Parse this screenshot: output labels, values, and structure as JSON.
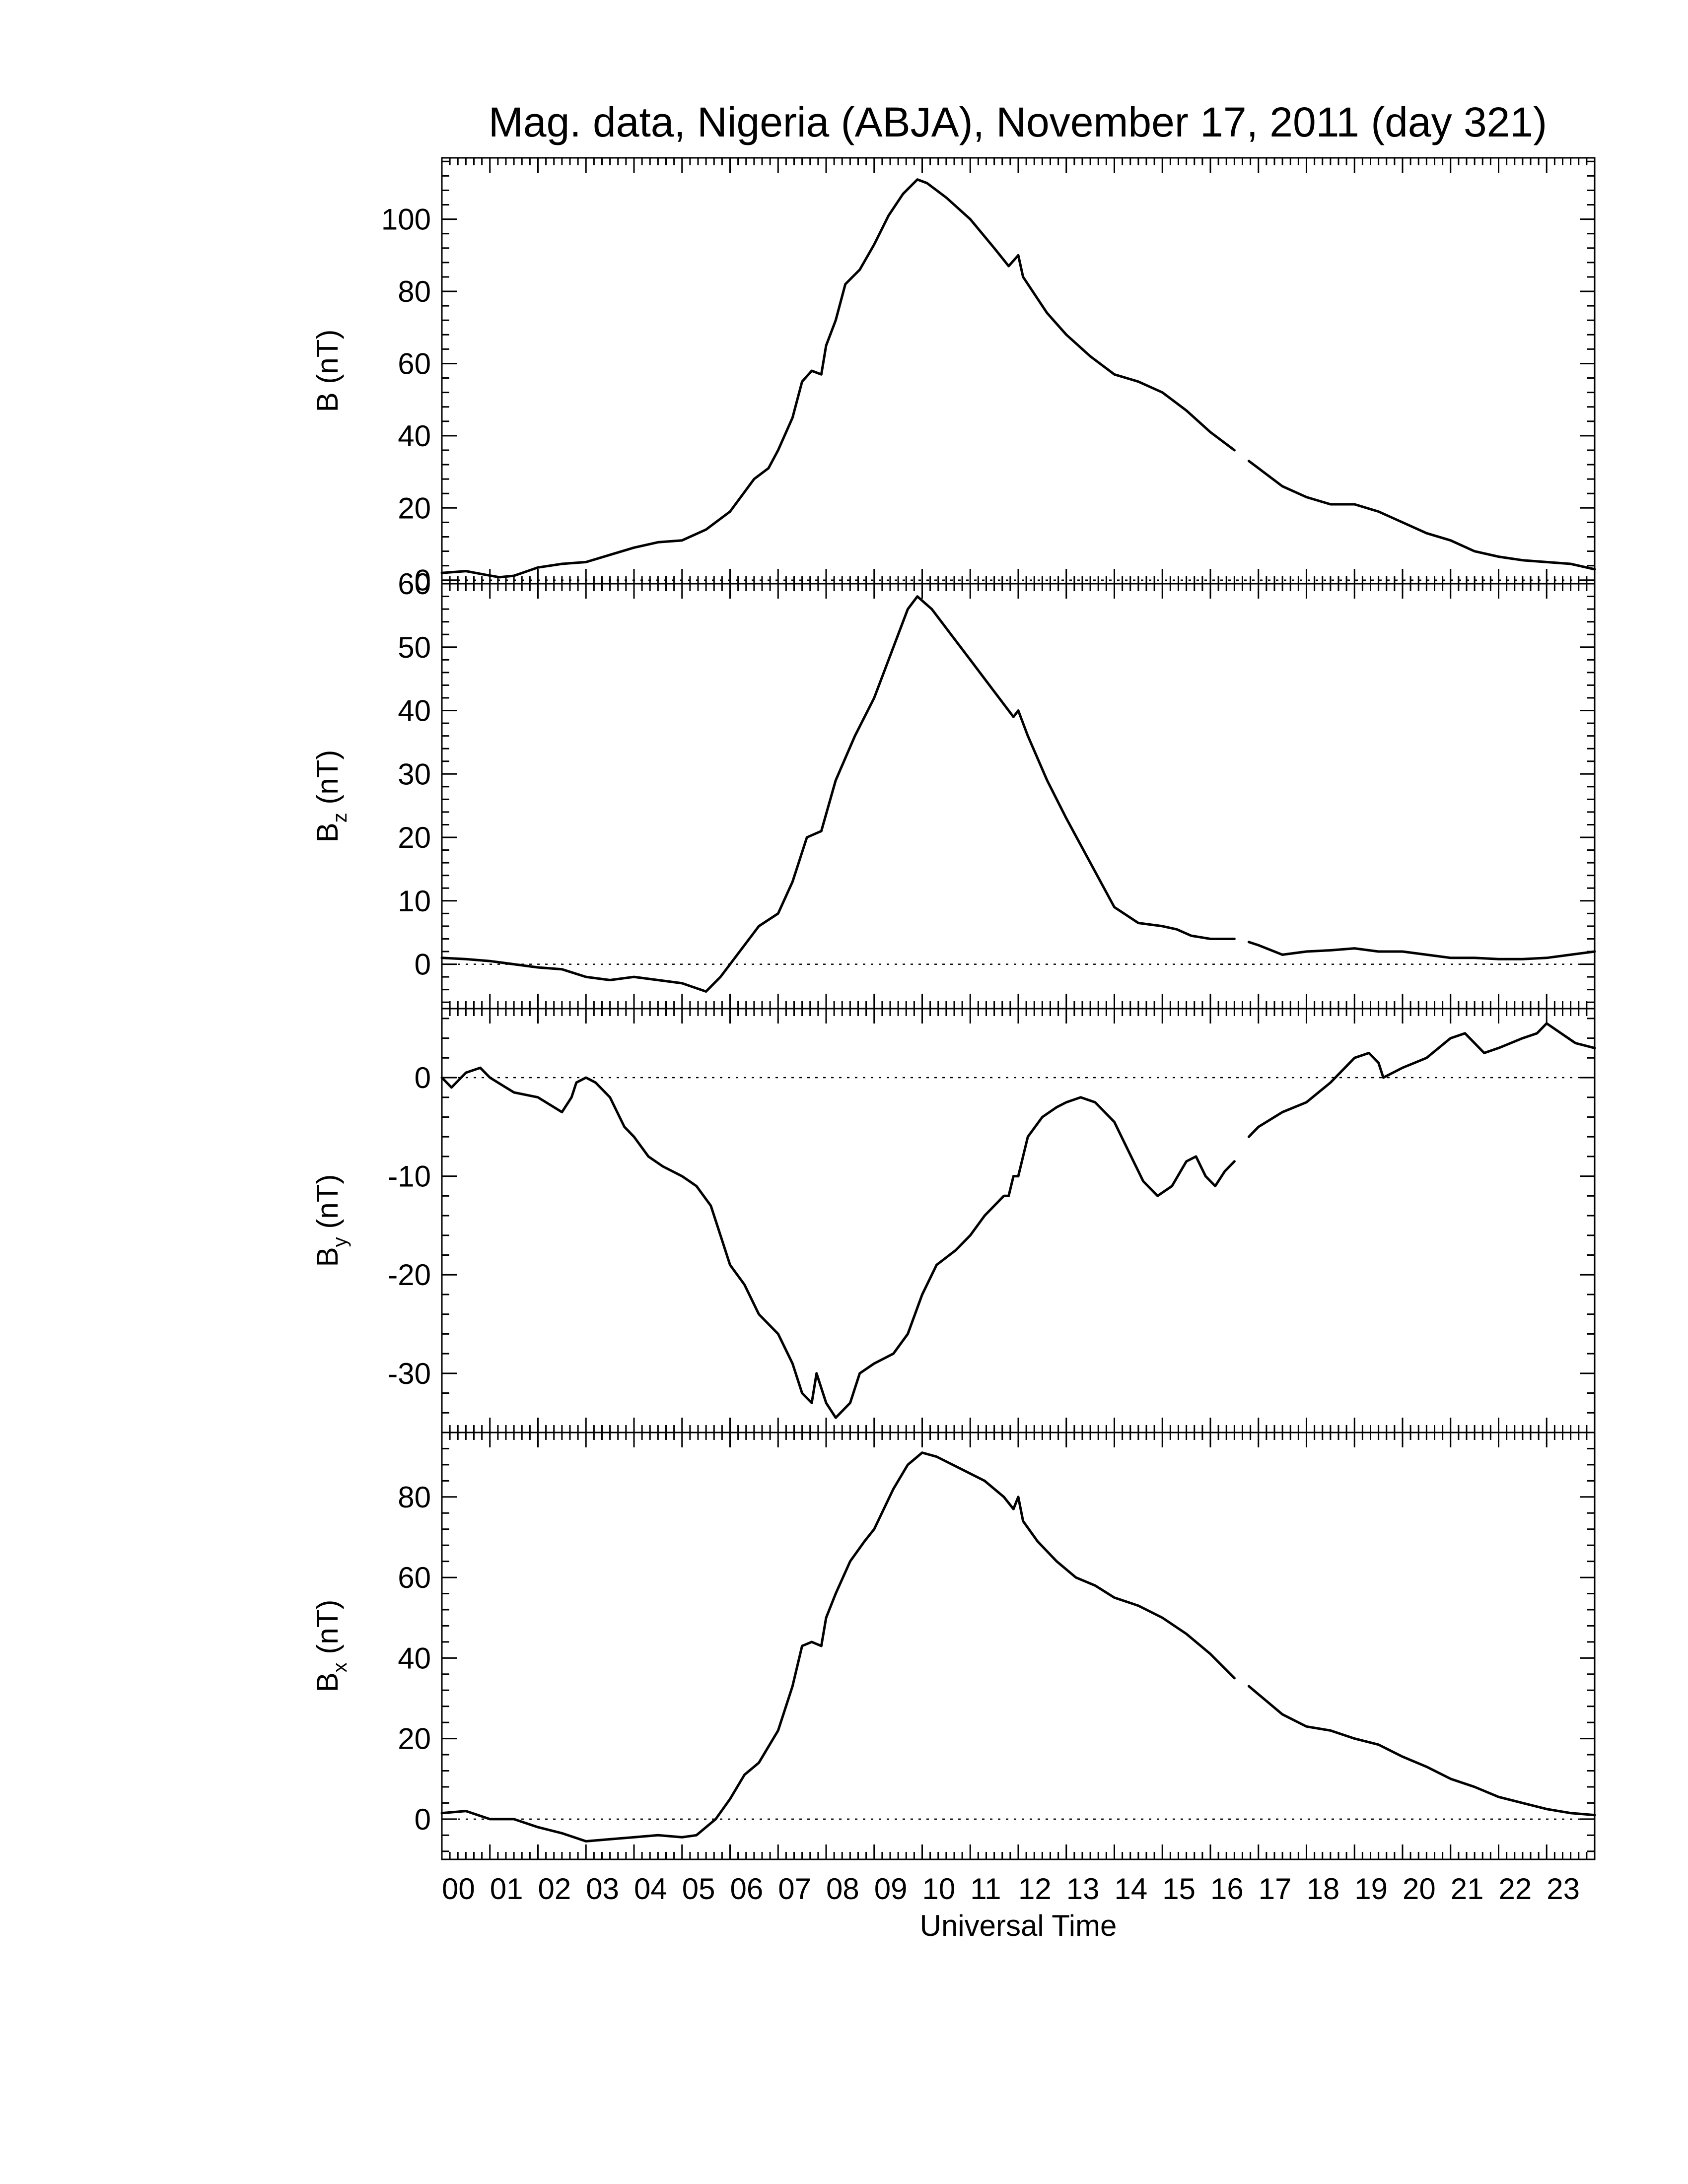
{
  "chart_data": {
    "type": "line",
    "title": "Mag. data, Nigeria (ABJA), November 17, 2011 (day 321)",
    "xlabel": "Universal Time",
    "x_unit": "hour (UT)",
    "xlim": [
      0,
      24
    ],
    "x_tick_labels": [
      "00",
      "01",
      "02",
      "03",
      "04",
      "05",
      "06",
      "07",
      "08",
      "09",
      "10",
      "11",
      "12",
      "13",
      "14",
      "15",
      "16",
      "17",
      "18",
      "19",
      "20",
      "21",
      "22",
      "23"
    ],
    "grid": false,
    "zero_reference_line": "dotted",
    "panels": [
      {
        "id": "B",
        "ylabel_main": "B",
        "ylabel_sub": "",
        "ylabel_unit": "(nT)",
        "ylim": [
          -1,
          117
        ],
        "y_ticks": [
          0,
          20,
          40,
          60,
          80,
          100
        ],
        "y_tick_labels": [
          "0",
          "20",
          "40",
          "60",
          "80",
          "100"
        ],
        "gap": [
          16.5,
          16.8
        ],
        "points": [
          [
            0,
            2
          ],
          [
            0.5,
            2.5
          ],
          [
            0.9,
            1.5
          ],
          [
            1.2,
            0.8
          ],
          [
            1.5,
            1.2
          ],
          [
            2,
            3.5
          ],
          [
            2.5,
            4.5
          ],
          [
            3,
            5
          ],
          [
            3.5,
            7
          ],
          [
            4,
            9
          ],
          [
            4.5,
            10.5
          ],
          [
            5,
            11
          ],
          [
            5.5,
            14
          ],
          [
            6,
            19
          ],
          [
            6.5,
            28
          ],
          [
            6.8,
            31
          ],
          [
            7,
            36
          ],
          [
            7.3,
            45
          ],
          [
            7.5,
            55
          ],
          [
            7.7,
            58
          ],
          [
            7.9,
            57
          ],
          [
            8,
            65
          ],
          [
            8.2,
            72
          ],
          [
            8.4,
            82
          ],
          [
            8.7,
            86
          ],
          [
            9,
            93
          ],
          [
            9.3,
            101
          ],
          [
            9.6,
            107
          ],
          [
            9.9,
            111
          ],
          [
            10.1,
            110
          ],
          [
            10.5,
            106
          ],
          [
            11,
            100
          ],
          [
            11.5,
            92
          ],
          [
            11.8,
            87
          ],
          [
            12,
            90
          ],
          [
            12.1,
            84
          ],
          [
            12.3,
            80
          ],
          [
            12.6,
            74
          ],
          [
            13,
            68
          ],
          [
            13.5,
            62
          ],
          [
            14,
            57
          ],
          [
            14.5,
            55
          ],
          [
            15,
            52
          ],
          [
            15.5,
            47
          ],
          [
            16,
            41
          ],
          [
            16.5,
            36
          ],
          [
            16.8,
            33
          ],
          [
            17,
            31
          ],
          [
            17.5,
            26
          ],
          [
            18,
            23
          ],
          [
            18.5,
            21
          ],
          [
            19,
            21
          ],
          [
            19.5,
            19
          ],
          [
            20,
            16
          ],
          [
            20.5,
            13
          ],
          [
            21,
            11
          ],
          [
            21.5,
            8
          ],
          [
            22,
            6.5
          ],
          [
            22.5,
            5.5
          ],
          [
            23,
            5
          ],
          [
            23.5,
            4.5
          ],
          [
            24,
            3
          ]
        ]
      },
      {
        "id": "Bz",
        "ylabel_main": "B",
        "ylabel_sub": "z",
        "ylabel_unit": "(nT)",
        "ylim": [
          -7,
          60
        ],
        "y_ticks": [
          0,
          10,
          20,
          30,
          40,
          50,
          60
        ],
        "y_tick_labels": [
          "0",
          "10",
          "20",
          "30",
          "40",
          "50",
          "60"
        ],
        "gap": [
          16.5,
          16.8
        ],
        "points": [
          [
            0,
            1
          ],
          [
            0.5,
            0.8
          ],
          [
            1,
            0.5
          ],
          [
            1.5,
            0
          ],
          [
            2,
            -0.5
          ],
          [
            2.5,
            -0.8
          ],
          [
            3,
            -2
          ],
          [
            3.5,
            -2.5
          ],
          [
            4,
            -2
          ],
          [
            4.5,
            -2.5
          ],
          [
            5,
            -3
          ],
          [
            5.5,
            -4.3
          ],
          [
            5.8,
            -2
          ],
          [
            6,
            0
          ],
          [
            6.3,
            3
          ],
          [
            6.6,
            6
          ],
          [
            7,
            8
          ],
          [
            7.3,
            13
          ],
          [
            7.6,
            20
          ],
          [
            7.9,
            21
          ],
          [
            8.2,
            29
          ],
          [
            8.6,
            36
          ],
          [
            9,
            42
          ],
          [
            9.4,
            50
          ],
          [
            9.7,
            56
          ],
          [
            9.9,
            58
          ],
          [
            10.2,
            56
          ],
          [
            10.6,
            52
          ],
          [
            11,
            48
          ],
          [
            11.5,
            43
          ],
          [
            11.9,
            39
          ],
          [
            12,
            40
          ],
          [
            12.2,
            36
          ],
          [
            12.6,
            29
          ],
          [
            13,
            23
          ],
          [
            13.5,
            16
          ],
          [
            14,
            9
          ],
          [
            14.5,
            6.5
          ],
          [
            15,
            6
          ],
          [
            15.3,
            5.5
          ],
          [
            15.6,
            4.5
          ],
          [
            16,
            4
          ],
          [
            16.5,
            4
          ],
          [
            16.8,
            3.5
          ],
          [
            17,
            3
          ],
          [
            17.5,
            1.5
          ],
          [
            18,
            2
          ],
          [
            18.5,
            2.2
          ],
          [
            19,
            2.5
          ],
          [
            19.5,
            2
          ],
          [
            20,
            2
          ],
          [
            20.5,
            1.5
          ],
          [
            21,
            1
          ],
          [
            21.5,
            1
          ],
          [
            22,
            0.8
          ],
          [
            22.5,
            0.8
          ],
          [
            23,
            1
          ],
          [
            23.5,
            1.5
          ],
          [
            24,
            2
          ]
        ]
      },
      {
        "id": "By",
        "ylabel_main": "B",
        "ylabel_sub": "y",
        "ylabel_unit": "(nT)",
        "ylim": [
          -36,
          7
        ],
        "y_ticks": [
          -30,
          -20,
          -10,
          0
        ],
        "y_tick_labels": [
          "-30",
          "-20",
          "-10",
          "0"
        ],
        "gap": [
          16.5,
          16.8
        ],
        "points": [
          [
            0,
            0
          ],
          [
            0.2,
            -1
          ],
          [
            0.5,
            0.5
          ],
          [
            0.8,
            1
          ],
          [
            1,
            0
          ],
          [
            1.5,
            -1.5
          ],
          [
            2,
            -2
          ],
          [
            2.5,
            -3.5
          ],
          [
            2.7,
            -2
          ],
          [
            2.8,
            -0.5
          ],
          [
            3,
            0
          ],
          [
            3.2,
            -0.5
          ],
          [
            3.5,
            -2
          ],
          [
            3.8,
            -5
          ],
          [
            4,
            -6
          ],
          [
            4.3,
            -8
          ],
          [
            4.6,
            -9
          ],
          [
            5,
            -10
          ],
          [
            5.3,
            -11
          ],
          [
            5.6,
            -13
          ],
          [
            5.8,
            -16
          ],
          [
            6,
            -19
          ],
          [
            6.3,
            -21
          ],
          [
            6.6,
            -24
          ],
          [
            7,
            -26
          ],
          [
            7.3,
            -29
          ],
          [
            7.5,
            -32
          ],
          [
            7.7,
            -33
          ],
          [
            7.8,
            -30
          ],
          [
            8,
            -33
          ],
          [
            8.2,
            -34.5
          ],
          [
            8.5,
            -33
          ],
          [
            8.7,
            -30
          ],
          [
            9,
            -29
          ],
          [
            9.4,
            -28
          ],
          [
            9.7,
            -26
          ],
          [
            10,
            -22
          ],
          [
            10.3,
            -19
          ],
          [
            10.7,
            -17.5
          ],
          [
            11,
            -16
          ],
          [
            11.3,
            -14
          ],
          [
            11.5,
            -13
          ],
          [
            11.7,
            -12
          ],
          [
            11.8,
            -12
          ],
          [
            11.9,
            -10
          ],
          [
            12,
            -10
          ],
          [
            12.2,
            -6
          ],
          [
            12.5,
            -4
          ],
          [
            12.8,
            -3
          ],
          [
            13,
            -2.5
          ],
          [
            13.3,
            -2
          ],
          [
            13.6,
            -2.5
          ],
          [
            14,
            -4.5
          ],
          [
            14.3,
            -7.5
          ],
          [
            14.6,
            -10.5
          ],
          [
            14.9,
            -12
          ],
          [
            15.2,
            -11
          ],
          [
            15.5,
            -8.5
          ],
          [
            15.7,
            -8
          ],
          [
            15.9,
            -10
          ],
          [
            16.1,
            -11
          ],
          [
            16.3,
            -9.5
          ],
          [
            16.5,
            -8.5
          ],
          [
            16.8,
            -6
          ],
          [
            17,
            -5
          ],
          [
            17.5,
            -3.5
          ],
          [
            18,
            -2.5
          ],
          [
            18.5,
            -0.5
          ],
          [
            18.8,
            1
          ],
          [
            19,
            2
          ],
          [
            19.3,
            2.5
          ],
          [
            19.5,
            1.5
          ],
          [
            19.6,
            0
          ],
          [
            20,
            1
          ],
          [
            20.5,
            2
          ],
          [
            21,
            4
          ],
          [
            21.3,
            4.5
          ],
          [
            21.5,
            3.5
          ],
          [
            21.7,
            2.5
          ],
          [
            22,
            3
          ],
          [
            22.5,
            4
          ],
          [
            22.8,
            4.5
          ],
          [
            23,
            5.5
          ],
          [
            23.3,
            4.5
          ],
          [
            23.6,
            3.5
          ],
          [
            24,
            3
          ]
        ]
      },
      {
        "id": "Bx",
        "ylabel_main": "B",
        "ylabel_sub": "x",
        "ylabel_unit": "(nT)",
        "ylim": [
          -10,
          96
        ],
        "y_ticks": [
          0,
          20,
          40,
          60,
          80
        ],
        "y_tick_labels": [
          "0",
          "20",
          "40",
          "60",
          "80"
        ],
        "gap": [
          16.5,
          16.8
        ],
        "points": [
          [
            0,
            1.5
          ],
          [
            0.5,
            2
          ],
          [
            1,
            0
          ],
          [
            1.5,
            0
          ],
          [
            2,
            -2
          ],
          [
            2.5,
            -3.5
          ],
          [
            3,
            -5.5
          ],
          [
            3.5,
            -5
          ],
          [
            4,
            -4.5
          ],
          [
            4.5,
            -4
          ],
          [
            5,
            -4.5
          ],
          [
            5.3,
            -4
          ],
          [
            5.7,
            0
          ],
          [
            6,
            5
          ],
          [
            6.3,
            11
          ],
          [
            6.6,
            14
          ],
          [
            7,
            22
          ],
          [
            7.3,
            33
          ],
          [
            7.5,
            43
          ],
          [
            7.7,
            44
          ],
          [
            7.9,
            43
          ],
          [
            8,
            50
          ],
          [
            8.2,
            56
          ],
          [
            8.5,
            64
          ],
          [
            8.8,
            69
          ],
          [
            9,
            72
          ],
          [
            9.4,
            82
          ],
          [
            9.7,
            88
          ],
          [
            10,
            91
          ],
          [
            10.3,
            90
          ],
          [
            10.8,
            87
          ],
          [
            11.3,
            84
          ],
          [
            11.7,
            80
          ],
          [
            11.9,
            77
          ],
          [
            12,
            80
          ],
          [
            12.1,
            74
          ],
          [
            12.4,
            69
          ],
          [
            12.8,
            64
          ],
          [
            13.2,
            60
          ],
          [
            13.6,
            58
          ],
          [
            14,
            55
          ],
          [
            14.5,
            53
          ],
          [
            15,
            50
          ],
          [
            15.5,
            46
          ],
          [
            16,
            41
          ],
          [
            16.5,
            35
          ],
          [
            16.8,
            33
          ],
          [
            17,
            31
          ],
          [
            17.5,
            26
          ],
          [
            18,
            23
          ],
          [
            18.5,
            22
          ],
          [
            19,
            20
          ],
          [
            19.5,
            18.5
          ],
          [
            20,
            15.5
          ],
          [
            20.5,
            13
          ],
          [
            21,
            10
          ],
          [
            21.5,
            8
          ],
          [
            22,
            5.5
          ],
          [
            22.5,
            4
          ],
          [
            23,
            2.5
          ],
          [
            23.5,
            1.5
          ],
          [
            24,
            1
          ]
        ]
      }
    ]
  }
}
